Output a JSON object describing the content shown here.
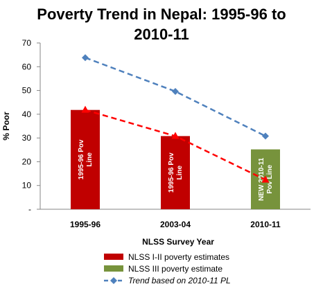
{
  "chart_data": {
    "type": "bar",
    "title": "Poverty Trend in Nepal: 1995-96 to 2010-11",
    "title_lines": [
      "Poverty Trend in Nepal: 1995-96 to",
      "2010-11"
    ],
    "xlabel": "NLSS Survey Year",
    "ylabel": "% Poor",
    "ylim": [
      0,
      70
    ],
    "yticks": [
      0,
      10,
      20,
      30,
      40,
      50,
      60,
      70
    ],
    "ytick_labels": [
      "-",
      "10",
      "20",
      "30",
      "40",
      "50",
      "60",
      "70"
    ],
    "grid": false,
    "categories": [
      "1995-96",
      "2003-04",
      "2010-11"
    ],
    "series": [
      {
        "name": "NLSS I-II poverty estimates",
        "kind": "bar",
        "color": "#c00000",
        "values": [
          41.8,
          30.8,
          null
        ],
        "bar_labels": [
          [
            "1995-96 Pov",
            "Line"
          ],
          [
            "1995-96 Pov",
            "Line"
          ],
          null
        ]
      },
      {
        "name": "NLSS III poverty estimate",
        "kind": "bar",
        "color": "#77933c",
        "values": [
          null,
          null,
          25.2
        ],
        "bar_labels": [
          null,
          null,
          [
            "NEW 2010-11",
            "Pov Line"
          ]
        ]
      },
      {
        "name": "Trend based on 2010-11 PL",
        "kind": "line",
        "color": "#4f81bd",
        "dash": true,
        "marker": "diamond",
        "values": [
          63.8,
          49.6,
          30.8
        ]
      },
      {
        "kind": "line",
        "color": "#ff0000",
        "dash": true,
        "marker": "triangle",
        "values": [
          41.8,
          30.8,
          12.4
        ]
      }
    ],
    "legend_position": "bottom"
  }
}
